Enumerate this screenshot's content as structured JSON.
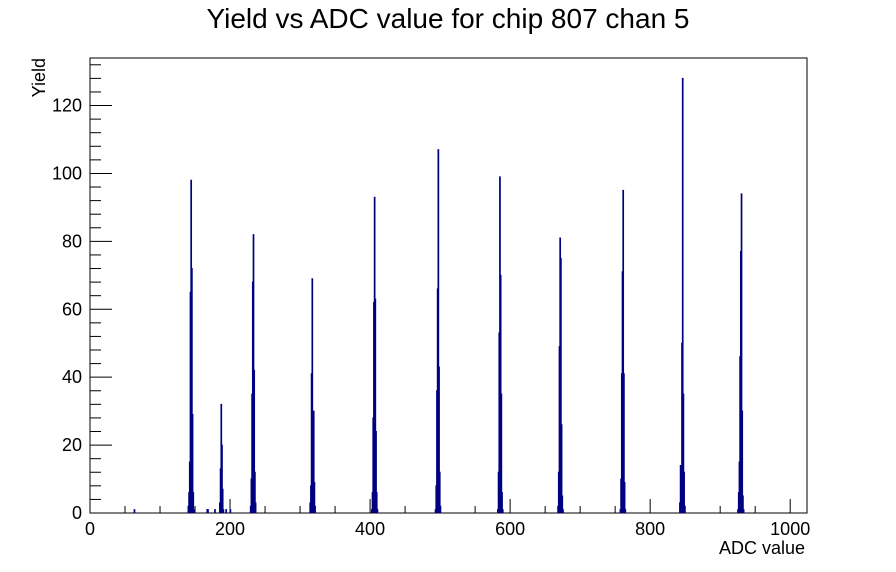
{
  "chart_data": {
    "type": "bar",
    "title": "Yield vs ADC value for chip 807 chan 5",
    "xlabel": "ADC value",
    "ylabel": "Yield",
    "xlim": [
      0,
      1024
    ],
    "ylim": [
      0,
      134
    ],
    "x_ticks": [
      0,
      200,
      400,
      600,
      800,
      1000
    ],
    "x_tick_labels": [
      "0",
      "200",
      "400",
      "600",
      "800",
      "1000"
    ],
    "y_ticks": [
      0,
      20,
      40,
      60,
      80,
      100,
      120
    ],
    "y_tick_labels": [
      "0",
      "20",
      "40",
      "60",
      "80",
      "100",
      "120"
    ],
    "color": "#000080",
    "grid": false,
    "legend": "none",
    "bins": [
      {
        "x": 63,
        "y": 1
      },
      {
        "x": 140,
        "y": 2
      },
      {
        "x": 141,
        "y": 6
      },
      {
        "x": 142,
        "y": 15
      },
      {
        "x": 143,
        "y": 65
      },
      {
        "x": 144,
        "y": 98
      },
      {
        "x": 145,
        "y": 72
      },
      {
        "x": 146,
        "y": 29
      },
      {
        "x": 147,
        "y": 6
      },
      {
        "x": 148,
        "y": 1
      },
      {
        "x": 167,
        "y": 1
      },
      {
        "x": 168,
        "y": 1
      },
      {
        "x": 178,
        "y": 1
      },
      {
        "x": 185,
        "y": 3
      },
      {
        "x": 186,
        "y": 13
      },
      {
        "x": 187,
        "y": 32
      },
      {
        "x": 188,
        "y": 20
      },
      {
        "x": 189,
        "y": 7
      },
      {
        "x": 190,
        "y": 1
      },
      {
        "x": 194,
        "y": 1
      },
      {
        "x": 200,
        "y": 1
      },
      {
        "x": 229,
        "y": 2
      },
      {
        "x": 230,
        "y": 10
      },
      {
        "x": 231,
        "y": 35
      },
      {
        "x": 232,
        "y": 68
      },
      {
        "x": 233,
        "y": 82
      },
      {
        "x": 234,
        "y": 42
      },
      {
        "x": 235,
        "y": 12
      },
      {
        "x": 236,
        "y": 3
      },
      {
        "x": 314,
        "y": 3
      },
      {
        "x": 315,
        "y": 8
      },
      {
        "x": 316,
        "y": 41
      },
      {
        "x": 317,
        "y": 69
      },
      {
        "x": 318,
        "y": 30
      },
      {
        "x": 319,
        "y": 30
      },
      {
        "x": 320,
        "y": 9
      },
      {
        "x": 321,
        "y": 2
      },
      {
        "x": 402,
        "y": 1
      },
      {
        "x": 403,
        "y": 6
      },
      {
        "x": 404,
        "y": 28
      },
      {
        "x": 405,
        "y": 62
      },
      {
        "x": 406,
        "y": 93
      },
      {
        "x": 407,
        "y": 63
      },
      {
        "x": 408,
        "y": 24
      },
      {
        "x": 409,
        "y": 6
      },
      {
        "x": 410,
        "y": 1
      },
      {
        "x": 493,
        "y": 1
      },
      {
        "x": 494,
        "y": 8
      },
      {
        "x": 495,
        "y": 36
      },
      {
        "x": 496,
        "y": 66
      },
      {
        "x": 497,
        "y": 107
      },
      {
        "x": 498,
        "y": 43
      },
      {
        "x": 499,
        "y": 12
      },
      {
        "x": 500,
        "y": 2
      },
      {
        "x": 582,
        "y": 1
      },
      {
        "x": 583,
        "y": 12
      },
      {
        "x": 584,
        "y": 53
      },
      {
        "x": 585,
        "y": 99
      },
      {
        "x": 586,
        "y": 70
      },
      {
        "x": 587,
        "y": 35
      },
      {
        "x": 588,
        "y": 6
      },
      {
        "x": 589,
        "y": 1
      },
      {
        "x": 668,
        "y": 2
      },
      {
        "x": 669,
        "y": 12
      },
      {
        "x": 670,
        "y": 49
      },
      {
        "x": 671,
        "y": 81
      },
      {
        "x": 672,
        "y": 75
      },
      {
        "x": 673,
        "y": 26
      },
      {
        "x": 674,
        "y": 5
      },
      {
        "x": 675,
        "y": 1
      },
      {
        "x": 757,
        "y": 1
      },
      {
        "x": 758,
        "y": 10
      },
      {
        "x": 759,
        "y": 41
      },
      {
        "x": 760,
        "y": 71
      },
      {
        "x": 761,
        "y": 95
      },
      {
        "x": 762,
        "y": 41
      },
      {
        "x": 763,
        "y": 9
      },
      {
        "x": 764,
        "y": 1
      },
      {
        "x": 842,
        "y": 3
      },
      {
        "x": 843,
        "y": 14
      },
      {
        "x": 844,
        "y": 9
      },
      {
        "x": 845,
        "y": 50
      },
      {
        "x": 846,
        "y": 128
      },
      {
        "x": 847,
        "y": 35
      },
      {
        "x": 848,
        "y": 12
      },
      {
        "x": 849,
        "y": 2
      },
      {
        "x": 925,
        "y": 1
      },
      {
        "x": 926,
        "y": 6
      },
      {
        "x": 927,
        "y": 15
      },
      {
        "x": 928,
        "y": 46
      },
      {
        "x": 929,
        "y": 77
      },
      {
        "x": 930,
        "y": 94
      },
      {
        "x": 931,
        "y": 30
      },
      {
        "x": 932,
        "y": 5
      },
      {
        "x": 933,
        "y": 1
      }
    ]
  }
}
